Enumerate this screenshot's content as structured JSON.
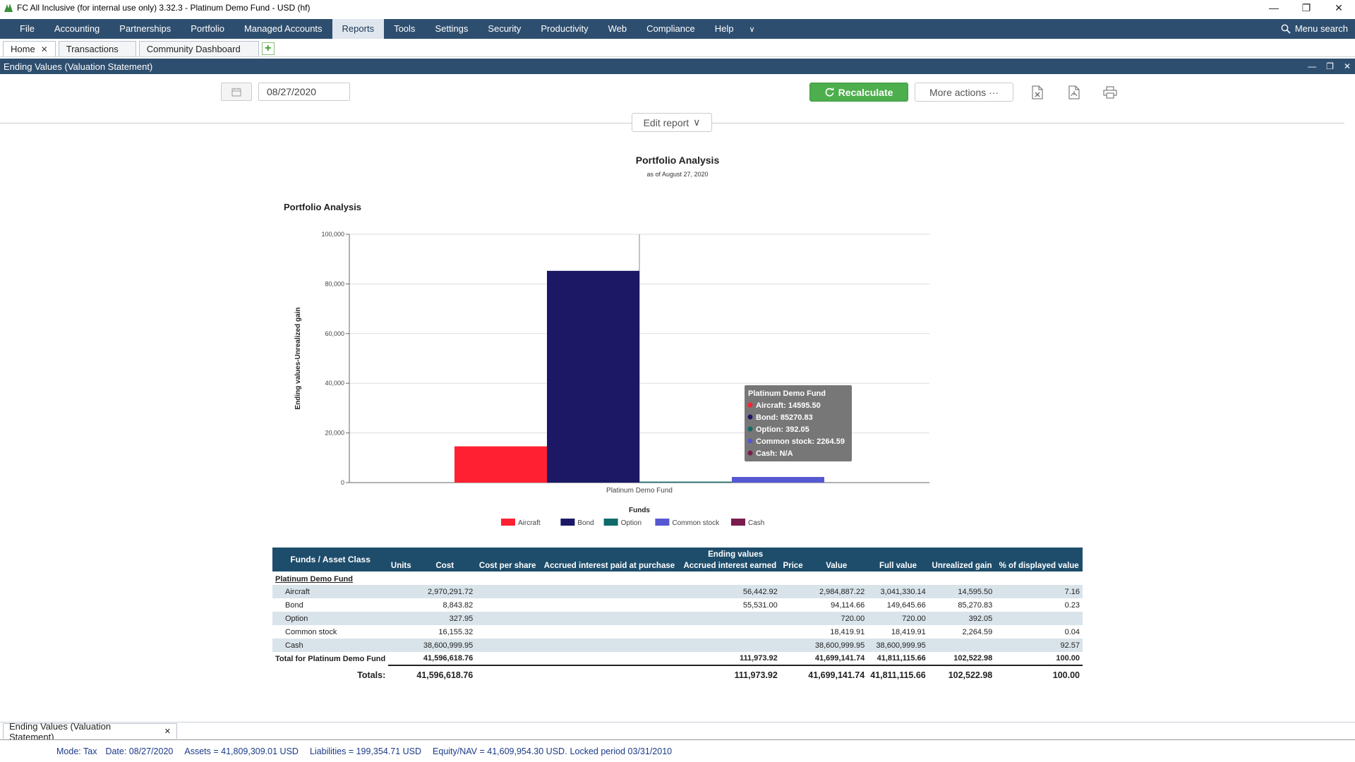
{
  "window": {
    "title": "FC All Inclusive (for internal use only) 3.32.3 - Platinum Demo Fund - USD (hf)"
  },
  "menu": {
    "items": [
      "File",
      "Accounting",
      "Partnerships",
      "Portfolio",
      "Managed Accounts",
      "Reports",
      "Tools",
      "Settings",
      "Security",
      "Productivity",
      "Web",
      "Compliance",
      "Help"
    ],
    "active_index": 5,
    "search_label": "Menu search"
  },
  "tabs": [
    {
      "label": "Home",
      "closable": true
    },
    {
      "label": "Transactions",
      "closable": false
    },
    {
      "label": "Community Dashboard",
      "closable": false
    }
  ],
  "panel": {
    "title": "Ending Values (Valuation Statement)"
  },
  "toolbar": {
    "date": "08/27/2020",
    "recalculate_label": "Recalculate",
    "more_actions_label": "More actions ···",
    "edit_report_label": "Edit report"
  },
  "report": {
    "title": "Portfolio Analysis",
    "subtitle": "as of August 27, 2020",
    "chart_heading": "Portfolio Analysis"
  },
  "chart_data": {
    "type": "bar",
    "categories": [
      "Platinum Demo Fund"
    ],
    "series": [
      {
        "name": "Aircraft",
        "values": [
          14595.5
        ],
        "color": "#ff2132"
      },
      {
        "name": "Bond",
        "values": [
          85270.83
        ],
        "color": "#1c1866"
      },
      {
        "name": "Option",
        "values": [
          392.05
        ],
        "color": "#0f6b6b"
      },
      {
        "name": "Common stock",
        "values": [
          2264.59
        ],
        "color": "#5558d0"
      },
      {
        "name": "Cash",
        "values": [
          null
        ],
        "color": "#7a1d4e"
      }
    ],
    "xlabel": "Funds",
    "ylabel": "Ending values-Unrealized gain",
    "ylim": [
      0,
      100000
    ],
    "yticks": [
      "0",
      "20,000",
      "40,000",
      "60,000",
      "80,000",
      "100,000"
    ],
    "legend": "bottom",
    "grid": true,
    "tooltip": {
      "title": "Platinum Demo Fund",
      "lines": [
        "Aircraft: 14595.50",
        "Bond: 85270.83",
        "Option: 392.05",
        "Common stock: 2264.59",
        "Cash: N/A"
      ]
    }
  },
  "table": {
    "group_header": "Ending values",
    "columns": [
      "Funds / Asset Class",
      "Units",
      "Cost",
      "Cost per share",
      "Accrued interest paid at purchase",
      "Accrued interest earned",
      "Price",
      "Value",
      "Full value",
      "Unrealized gain",
      "% of displayed value"
    ],
    "fund_name": "Platinum Demo Fund",
    "rows": [
      {
        "name": "Aircraft",
        "units": "",
        "cost": "2,970,291.72",
        "cps": "",
        "aipp": "",
        "aie": "56,442.92",
        "price": "",
        "value": "2,984,887.22",
        "full": "3,041,330.14",
        "ugain": "14,595.50",
        "pct": "7.16"
      },
      {
        "name": "Bond",
        "units": "",
        "cost": "8,843.82",
        "cps": "",
        "aipp": "",
        "aie": "55,531.00",
        "price": "",
        "value": "94,114.66",
        "full": "149,645.66",
        "ugain": "85,270.83",
        "pct": "0.23"
      },
      {
        "name": "Option",
        "units": "",
        "cost": "327.95",
        "cps": "",
        "aipp": "",
        "aie": "",
        "price": "",
        "value": "720.00",
        "full": "720.00",
        "ugain": "392.05",
        "pct": ""
      },
      {
        "name": "Common stock",
        "units": "",
        "cost": "16,155.32",
        "cps": "",
        "aipp": "",
        "aie": "",
        "price": "",
        "value": "18,419.91",
        "full": "18,419.91",
        "ugain": "2,264.59",
        "pct": "0.04"
      },
      {
        "name": "Cash",
        "units": "",
        "cost": "38,600,999.95",
        "cps": "",
        "aipp": "",
        "aie": "",
        "price": "",
        "value": "38,600,999.95",
        "full": "38,600,999.95",
        "ugain": "",
        "pct": "92.57"
      }
    ],
    "total": {
      "label": "Total for Platinum Demo Fund",
      "cost": "41,596,618.76",
      "aie": "111,973.92",
      "value": "41,699,141.74",
      "full": "41,811,115.66",
      "ugain": "102,522.98",
      "pct": "100.00"
    },
    "grand": {
      "label": "Totals:",
      "cost": "41,596,618.76",
      "aie": "111,973.92",
      "value": "41,699,141.74",
      "full": "41,811,115.66",
      "ugain": "102,522.98",
      "pct": "100.00"
    }
  },
  "bottom_tab": {
    "label": "Ending Values (Valuation Statement)"
  },
  "status": {
    "mode": "Mode: Tax",
    "date": "Date: 08/27/2020",
    "assets": "Assets = 41,809,309.01 USD",
    "liabilities": "Liabilities = 199,354.71 USD",
    "equity": "Equity/NAV = 41,609,954.30 USD.",
    "locked": "Locked period 03/31/2010"
  }
}
